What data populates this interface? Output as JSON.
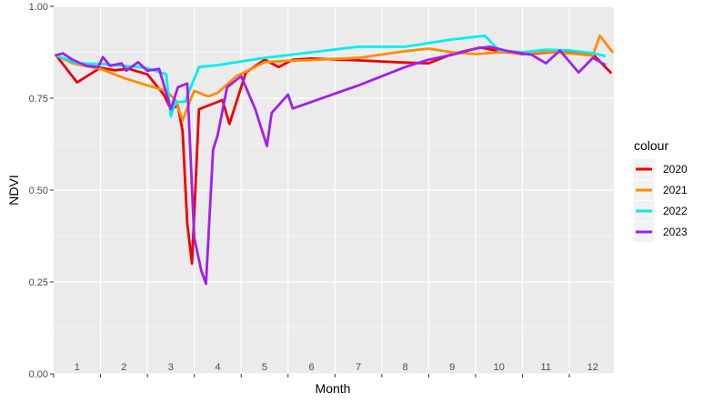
{
  "chart_data": {
    "type": "line",
    "xlabel": "Month",
    "ylabel": "NDVI",
    "ylim": [
      0,
      1
    ],
    "xlim": [
      0.5,
      12.45
    ],
    "yticks": [
      0,
      0.25,
      0.5,
      0.75,
      1
    ],
    "ytick_labels": [
      "0.00",
      "0.25",
      "0.50",
      "0.75",
      "1.00"
    ],
    "month_labels": [
      "1",
      "2",
      "3",
      "4",
      "5",
      "6",
      "7",
      "8",
      "9",
      "10",
      "11",
      "12"
    ],
    "grid": true,
    "legend": {
      "title": "colour",
      "position": "right"
    },
    "series": [
      {
        "name": "2020",
        "color": "#EE0000",
        "points": [
          [
            0.55,
            0.867
          ],
          [
            1.0,
            0.793
          ],
          [
            1.5,
            0.833
          ],
          [
            1.8,
            0.826
          ],
          [
            2.1,
            0.83
          ],
          [
            2.5,
            0.815
          ],
          [
            2.85,
            0.76
          ],
          [
            3.0,
            0.72
          ],
          [
            3.15,
            0.73
          ],
          [
            3.25,
            0.66
          ],
          [
            3.35,
            0.41
          ],
          [
            3.45,
            0.3
          ],
          [
            3.6,
            0.72
          ],
          [
            4.1,
            0.745
          ],
          [
            4.25,
            0.68
          ],
          [
            4.6,
            0.82
          ],
          [
            5.0,
            0.855
          ],
          [
            5.3,
            0.835
          ],
          [
            5.6,
            0.855
          ],
          [
            6.0,
            0.858
          ],
          [
            7.0,
            0.853
          ],
          [
            8.0,
            0.847
          ],
          [
            8.5,
            0.845
          ],
          [
            9.0,
            0.87
          ],
          [
            9.6,
            0.888
          ],
          [
            10.0,
            0.878
          ],
          [
            10.5,
            0.87
          ],
          [
            11.0,
            0.874
          ],
          [
            11.5,
            0.878
          ],
          [
            12.0,
            0.87
          ],
          [
            12.38,
            0.82
          ]
        ]
      },
      {
        "name": "2021",
        "color": "#FF8C00",
        "points": [
          [
            0.55,
            0.867
          ],
          [
            0.9,
            0.845
          ],
          [
            1.5,
            0.83
          ],
          [
            2.0,
            0.805
          ],
          [
            2.5,
            0.785
          ],
          [
            2.9,
            0.77
          ],
          [
            3.1,
            0.745
          ],
          [
            3.25,
            0.69
          ],
          [
            3.4,
            0.74
          ],
          [
            3.5,
            0.77
          ],
          [
            3.8,
            0.755
          ],
          [
            4.0,
            0.765
          ],
          [
            4.4,
            0.81
          ],
          [
            5.0,
            0.848
          ],
          [
            5.5,
            0.852
          ],
          [
            6.0,
            0.854
          ],
          [
            7.0,
            0.86
          ],
          [
            8.0,
            0.878
          ],
          [
            8.5,
            0.885
          ],
          [
            9.0,
            0.875
          ],
          [
            9.5,
            0.87
          ],
          [
            10.0,
            0.875
          ],
          [
            10.5,
            0.872
          ],
          [
            11.0,
            0.876
          ],
          [
            11.5,
            0.872
          ],
          [
            12.0,
            0.866
          ],
          [
            12.15,
            0.92
          ],
          [
            12.42,
            0.876
          ]
        ]
      },
      {
        "name": "2022",
        "color": "#00EEEE",
        "points": [
          [
            0.55,
            0.866
          ],
          [
            1.0,
            0.845
          ],
          [
            1.5,
            0.843
          ],
          [
            2.0,
            0.838
          ],
          [
            2.5,
            0.832
          ],
          [
            2.9,
            0.815
          ],
          [
            3.0,
            0.7
          ],
          [
            3.1,
            0.74
          ],
          [
            3.3,
            0.74
          ],
          [
            3.6,
            0.835
          ],
          [
            4.0,
            0.84
          ],
          [
            5.0,
            0.86
          ],
          [
            6.0,
            0.875
          ],
          [
            7.0,
            0.89
          ],
          [
            8.0,
            0.89
          ],
          [
            9.0,
            0.91
          ],
          [
            9.7,
            0.92
          ],
          [
            10.0,
            0.88
          ],
          [
            10.5,
            0.875
          ],
          [
            11.0,
            0.882
          ],
          [
            11.5,
            0.88
          ],
          [
            12.0,
            0.873
          ],
          [
            12.25,
            0.865
          ]
        ]
      },
      {
        "name": "2023",
        "color": "#A020F0",
        "points": [
          [
            0.55,
            0.867
          ],
          [
            0.7,
            0.872
          ],
          [
            0.9,
            0.855
          ],
          [
            1.2,
            0.838
          ],
          [
            1.45,
            0.835
          ],
          [
            1.55,
            0.862
          ],
          [
            1.7,
            0.838
          ],
          [
            1.95,
            0.845
          ],
          [
            2.05,
            0.825
          ],
          [
            2.3,
            0.848
          ],
          [
            2.5,
            0.825
          ],
          [
            2.75,
            0.83
          ],
          [
            3.0,
            0.72
          ],
          [
            3.15,
            0.78
          ],
          [
            3.35,
            0.79
          ],
          [
            3.5,
            0.37
          ],
          [
            3.65,
            0.28
          ],
          [
            3.75,
            0.245
          ],
          [
            3.9,
            0.61
          ],
          [
            4.0,
            0.65
          ],
          [
            4.2,
            0.78
          ],
          [
            4.5,
            0.81
          ],
          [
            4.8,
            0.72
          ],
          [
            5.05,
            0.62
          ],
          [
            5.15,
            0.71
          ],
          [
            5.5,
            0.76
          ],
          [
            5.6,
            0.722
          ],
          [
            7.0,
            0.785
          ],
          [
            8.0,
            0.835
          ],
          [
            8.5,
            0.855
          ],
          [
            9.0,
            0.868
          ],
          [
            9.5,
            0.885
          ],
          [
            9.8,
            0.89
          ],
          [
            10.2,
            0.878
          ],
          [
            10.5,
            0.872
          ],
          [
            10.7,
            0.868
          ],
          [
            11.0,
            0.845
          ],
          [
            11.3,
            0.88
          ],
          [
            11.7,
            0.82
          ],
          [
            12.0,
            0.86
          ],
          [
            12.25,
            0.842
          ]
        ]
      }
    ]
  }
}
